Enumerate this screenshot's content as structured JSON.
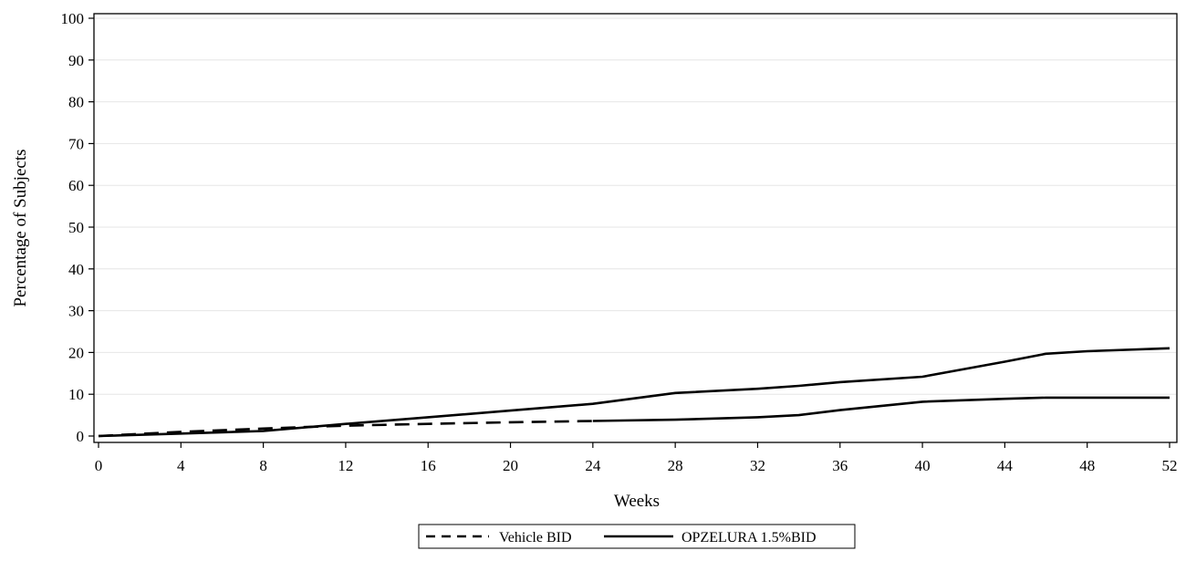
{
  "chart_data": {
    "type": "line",
    "title": "",
    "xlabel": "Weeks",
    "ylabel": "Percentage of Subjects",
    "xlim": [
      0,
      52
    ],
    "ylim": [
      0,
      100
    ],
    "xticks": [
      0,
      4,
      8,
      12,
      16,
      20,
      24,
      28,
      32,
      36,
      40,
      44,
      48,
      52
    ],
    "yticks": [
      0,
      10,
      20,
      30,
      40,
      50,
      60,
      70,
      80,
      90,
      100
    ],
    "grid": true,
    "legend_position": "bottom-center",
    "series": [
      {
        "name": "Vehicle BID",
        "style": "dashed",
        "color": "#000000",
        "points": [
          [
            0,
            0
          ],
          [
            4,
            1.0
          ],
          [
            8,
            1.8
          ],
          [
            12,
            2.5
          ],
          [
            16,
            2.9
          ],
          [
            20,
            3.3
          ],
          [
            24,
            3.6
          ]
        ]
      },
      {
        "name": "OPZELURA 1.5%BID",
        "style": "solid",
        "color": "#000000",
        "points": [
          [
            0,
            0
          ],
          [
            4,
            0.6
          ],
          [
            8,
            1.2
          ],
          [
            12,
            2.9
          ],
          [
            16,
            4.5
          ],
          [
            20,
            6.1
          ],
          [
            24,
            7.7
          ],
          [
            28,
            10.3
          ],
          [
            32,
            11.3
          ],
          [
            34,
            12.0
          ],
          [
            36,
            12.9
          ],
          [
            40,
            14.2
          ],
          [
            44,
            17.8
          ],
          [
            46,
            19.7
          ],
          [
            48,
            20.3
          ],
          [
            52,
            21.0
          ]
        ]
      },
      {
        "name": "",
        "style": "solid",
        "color": "#000000",
        "points": [
          [
            24,
            3.6
          ],
          [
            28,
            3.9
          ],
          [
            32,
            4.5
          ],
          [
            34,
            5.0
          ],
          [
            36,
            6.2
          ],
          [
            40,
            8.2
          ],
          [
            44,
            8.9
          ],
          [
            46,
            9.2
          ],
          [
            48,
            9.2
          ],
          [
            52,
            9.2
          ]
        ]
      }
    ]
  }
}
